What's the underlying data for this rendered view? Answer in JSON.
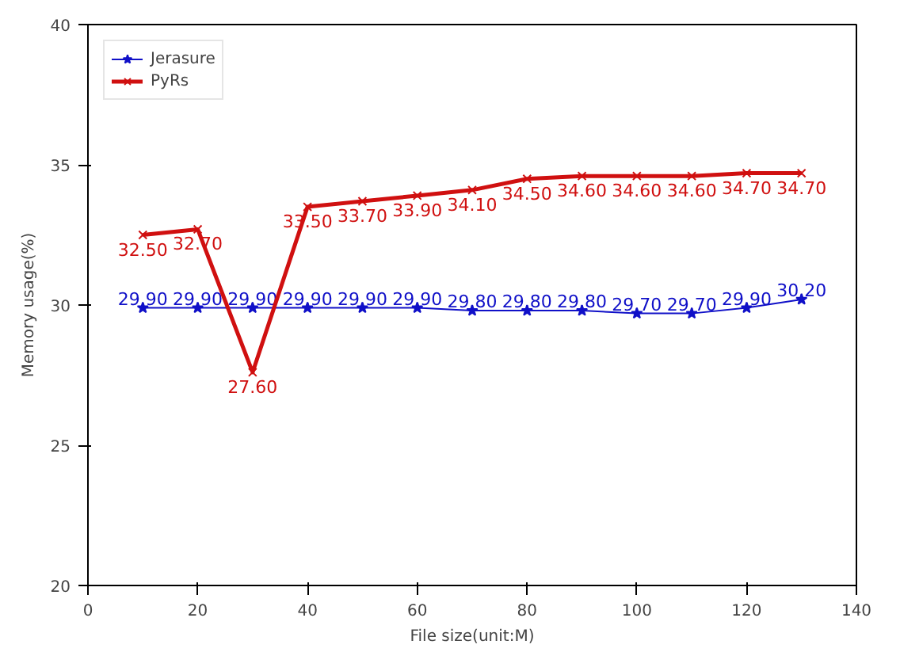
{
  "chart_data": {
    "type": "line",
    "xlabel": "File size(unit:M)",
    "ylabel": "Memory usage(%)",
    "x": [
      10,
      20,
      30,
      40,
      50,
      60,
      70,
      80,
      90,
      100,
      110,
      120,
      130
    ],
    "series": [
      {
        "name": "Jerasure",
        "color": "#1010c8",
        "marker": "star",
        "values": [
          29.9,
          29.9,
          29.9,
          29.9,
          29.9,
          29.9,
          29.8,
          29.8,
          29.8,
          29.7,
          29.7,
          29.9,
          30.2
        ],
        "value_labels": [
          "29.90",
          "29.90",
          "29.90",
          "29.90",
          "29.90",
          "29.90",
          "29.80",
          "29.80",
          "29.80",
          "29.70",
          "29.70",
          "29.90",
          "30.20"
        ]
      },
      {
        "name": "PyRs",
        "color": "#d01010",
        "marker": "cross",
        "values": [
          32.5,
          32.7,
          27.6,
          33.5,
          33.7,
          33.9,
          34.1,
          34.5,
          34.6,
          34.6,
          34.6,
          34.7,
          34.7
        ],
        "value_labels": [
          "32.50",
          "32.70",
          "27.60",
          "33.50",
          "33.70",
          "33.90",
          "34.10",
          "34.50",
          "34.60",
          "34.60",
          "34.60",
          "34.70",
          "34.70"
        ]
      }
    ],
    "xlim": [
      0,
      140
    ],
    "xticks": [
      0,
      20,
      40,
      60,
      80,
      100,
      120,
      140
    ],
    "ylim": [
      20,
      40
    ],
    "yticks": [
      20,
      25,
      30,
      35,
      40
    ],
    "grid": false,
    "legend": "top left"
  }
}
